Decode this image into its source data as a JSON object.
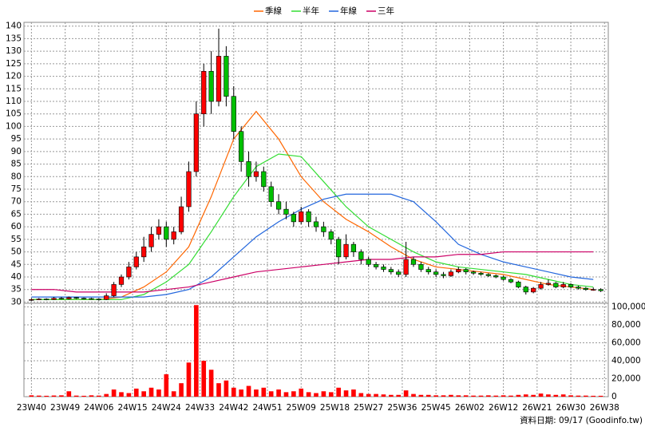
{
  "chart_data": {
    "type": "candlestick",
    "xlim": [
      -2,
      154
    ],
    "xticks": [
      {
        "value": 0,
        "label": "23W40"
      },
      {
        "value": 9,
        "label": "23W49"
      },
      {
        "value": 18,
        "label": "24W06"
      },
      {
        "value": 27,
        "label": "24W15"
      },
      {
        "value": 36,
        "label": "24W24"
      },
      {
        "value": 45,
        "label": "24W33"
      },
      {
        "value": 54,
        "label": "24W42"
      },
      {
        "value": 63,
        "label": "24W51"
      },
      {
        "value": 72,
        "label": "25W09"
      },
      {
        "value": 81,
        "label": "25W18"
      },
      {
        "value": 90,
        "label": "25W27"
      },
      {
        "value": 99,
        "label": "25W36"
      },
      {
        "value": 108,
        "label": "25W45"
      },
      {
        "value": 117,
        "label": "26W02"
      },
      {
        "value": 126,
        "label": "26W12"
      },
      {
        "value": 135,
        "label": "26W21"
      },
      {
        "value": 144,
        "label": "26W30"
      },
      {
        "value": 153,
        "label": "26W38"
      }
    ],
    "ylim": [
      29.5,
      141.5
    ],
    "yticks": [
      30,
      35,
      40,
      45,
      50,
      55,
      60,
      65,
      70,
      75,
      80,
      85,
      90,
      95,
      100,
      105,
      110,
      115,
      120,
      125,
      130,
      135,
      140
    ],
    "y2lim": [
      0,
      104000
    ],
    "y2ticks": [
      0,
      {
        "value": 20000,
        "label": "20,000"
      },
      {
        "value": 40000,
        "label": "40,000"
      },
      {
        "value": 60000,
        "label": "60,000"
      },
      {
        "value": 80000,
        "label": "80,000"
      },
      {
        "value": 100000,
        "label": "100,000"
      }
    ],
    "grid": true,
    "up_color": "#ff0000",
    "down_color": "#00c000",
    "volume_color": "#ff0000",
    "candle_x": [
      0,
      2,
      4,
      6,
      8,
      10,
      12,
      14,
      16,
      18,
      20,
      22,
      24,
      26,
      28,
      30,
      32,
      34,
      36,
      38,
      40,
      42,
      44,
      46,
      48,
      50,
      52,
      54,
      56,
      58,
      60,
      62,
      64,
      66,
      68,
      70,
      72,
      74,
      76,
      78,
      80,
      82,
      84,
      86,
      88,
      90,
      92,
      94,
      96,
      98,
      100,
      102,
      104,
      106,
      108,
      110,
      112,
      114,
      116,
      118,
      120,
      122,
      124,
      126,
      128,
      130,
      132,
      134,
      136,
      138,
      140,
      142,
      144,
      146,
      148,
      150,
      152
    ],
    "candles": [
      [
        30.8,
        31.5,
        30.5,
        31
      ],
      [
        31,
        31.6,
        30.8,
        31.2
      ],
      [
        31.2,
        31.5,
        30.7,
        31
      ],
      [
        31,
        32,
        30.8,
        31.5
      ],
      [
        31.5,
        32,
        31,
        31.3
      ],
      [
        31.3,
        32.2,
        31,
        31.8
      ],
      [
        31.8,
        32,
        31.2,
        31.5
      ],
      [
        31.5,
        31.8,
        31,
        31.4
      ],
      [
        31.4,
        31.7,
        30.9,
        31.2
      ],
      [
        31.2,
        31.5,
        30.6,
        31
      ],
      [
        31,
        33.5,
        30.8,
        32.5
      ],
      [
        32.5,
        38,
        32,
        37
      ],
      [
        37,
        41,
        36,
        40
      ],
      [
        40,
        46,
        39,
        44
      ],
      [
        44,
        50,
        43,
        48
      ],
      [
        48,
        56,
        46,
        52
      ],
      [
        52,
        60,
        50,
        57
      ],
      [
        57,
        63,
        55,
        60
      ],
      [
        60,
        62,
        52,
        55
      ],
      [
        55,
        60,
        53,
        58
      ],
      [
        58,
        72,
        57,
        68
      ],
      [
        68,
        86,
        66,
        82
      ],
      [
        82,
        110,
        80,
        105
      ],
      [
        105,
        125,
        100,
        122
      ],
      [
        122,
        130,
        105,
        110
      ],
      [
        110,
        139,
        108,
        128
      ],
      [
        128,
        132,
        108,
        112
      ],
      [
        112,
        116,
        95,
        98
      ],
      [
        98,
        100,
        82,
        86
      ],
      [
        86,
        90,
        76,
        80
      ],
      [
        80,
        86,
        78,
        82
      ],
      [
        82,
        84,
        74,
        76
      ],
      [
        76,
        78,
        68,
        70
      ],
      [
        70,
        73,
        65,
        67
      ],
      [
        67,
        70,
        63,
        65
      ],
      [
        65,
        66,
        60,
        62
      ],
      [
        62,
        68,
        61,
        66
      ],
      [
        66,
        67,
        60,
        62
      ],
      [
        62,
        64,
        58,
        60
      ],
      [
        60,
        62,
        56,
        58
      ],
      [
        58,
        59,
        53,
        55
      ],
      [
        55,
        56,
        45,
        48
      ],
      [
        48,
        57,
        47,
        53
      ],
      [
        53,
        54,
        48,
        50
      ],
      [
        50,
        51,
        45,
        47
      ],
      [
        47,
        48,
        44,
        45
      ],
      [
        45,
        46,
        43,
        44
      ],
      [
        44,
        45,
        42,
        43
      ],
      [
        43,
        44,
        41,
        42
      ],
      [
        42,
        43,
        40,
        41
      ],
      [
        41,
        54,
        40,
        47
      ],
      [
        47,
        48,
        44,
        45
      ],
      [
        45,
        46,
        42,
        43
      ],
      [
        43,
        44,
        41,
        42
      ],
      [
        42,
        43,
        40,
        41
      ],
      [
        41,
        42,
        39.5,
        40.5
      ],
      [
        40.5,
        43,
        40,
        42
      ],
      [
        42,
        44,
        41.5,
        43
      ],
      [
        43,
        43.5,
        41,
        42
      ],
      [
        42,
        42.5,
        40.8,
        41.5
      ],
      [
        41.5,
        42,
        40.5,
        41
      ],
      [
        41,
        41.5,
        40,
        40.5
      ],
      [
        40.5,
        41,
        39.5,
        40
      ],
      [
        40,
        40.5,
        38.5,
        39
      ],
      [
        39,
        39.5,
        37.5,
        38
      ],
      [
        38,
        38.5,
        35.5,
        36
      ],
      [
        36,
        36.5,
        33,
        34
      ],
      [
        34,
        36,
        33.5,
        35.5
      ],
      [
        35.5,
        38,
        35,
        37
      ],
      [
        37,
        39,
        36.5,
        37.5
      ],
      [
        37.5,
        38,
        35.5,
        36
      ],
      [
        36,
        38,
        35.5,
        37
      ],
      [
        37,
        37.5,
        35.5,
        36
      ],
      [
        36,
        36.5,
        35,
        35.5
      ],
      [
        35.5,
        36,
        34.5,
        35
      ],
      [
        35,
        35.8,
        34.5,
        35
      ],
      [
        35,
        35.5,
        34,
        34.5
      ]
    ],
    "volume": [
      1500,
      1200,
      1000,
      1300,
      1500,
      6000,
      1200,
      1000,
      1500,
      1200,
      3000,
      8000,
      5000,
      4000,
      9000,
      6000,
      10000,
      8000,
      25000,
      6000,
      15000,
      38000,
      102000,
      40000,
      30000,
      15000,
      18000,
      10000,
      8000,
      12000,
      8000,
      10000,
      6000,
      8000,
      5000,
      6000,
      9000,
      5000,
      4000,
      6000,
      5000,
      10000,
      7000,
      8000,
      4000,
      3000,
      3000,
      2500,
      2000,
      2000,
      7000,
      3000,
      2000,
      2000,
      1500,
      1500,
      2000,
      1500,
      1500,
      1200,
      1200,
      1500,
      1200,
      1500,
      1200,
      2000,
      2500,
      2000,
      3500,
      2500,
      2000,
      2500,
      1500,
      1200,
      1200,
      1000,
      1000
    ],
    "ma_x": [
      0,
      6,
      12,
      18,
      24,
      30,
      36,
      42,
      48,
      54,
      60,
      66,
      72,
      78,
      84,
      90,
      96,
      102,
      108,
      114,
      120,
      126,
      132,
      138,
      144,
      150
    ],
    "series": [
      {
        "name": "季線",
        "color": "#ff6600",
        "values": [
          31,
          31,
          31,
          31,
          32,
          36,
          42,
          52,
          72,
          95,
          106,
          95,
          80,
          70,
          63,
          58,
          52,
          47,
          44,
          43,
          42,
          41,
          39,
          37,
          36,
          35
        ]
      },
      {
        "name": "半年",
        "color": "#33dd33",
        "values": [
          31,
          31,
          31,
          31,
          31,
          33,
          38,
          45,
          58,
          72,
          84,
          89,
          88,
          78,
          68,
          60,
          55,
          50,
          46,
          44,
          43,
          42,
          41,
          39,
          37,
          36
        ]
      },
      {
        "name": "年線",
        "color": "#2266dd",
        "values": [
          32,
          32,
          32,
          32,
          32,
          32,
          33,
          35,
          40,
          48,
          56,
          62,
          67,
          71,
          73,
          73,
          73,
          70,
          62,
          53,
          49,
          46,
          44,
          42,
          40,
          39
        ]
      },
      {
        "name": "三年",
        "color": "#cc0066",
        "values": [
          35,
          35,
          34,
          34,
          34,
          34,
          35,
          36,
          38,
          40,
          42,
          43,
          44,
          45,
          46,
          47,
          47,
          48,
          48,
          49,
          49,
          50,
          50,
          50,
          50,
          50
        ]
      }
    ],
    "footnote": "資料日期: 09/17 (Goodinfo.tw)"
  }
}
